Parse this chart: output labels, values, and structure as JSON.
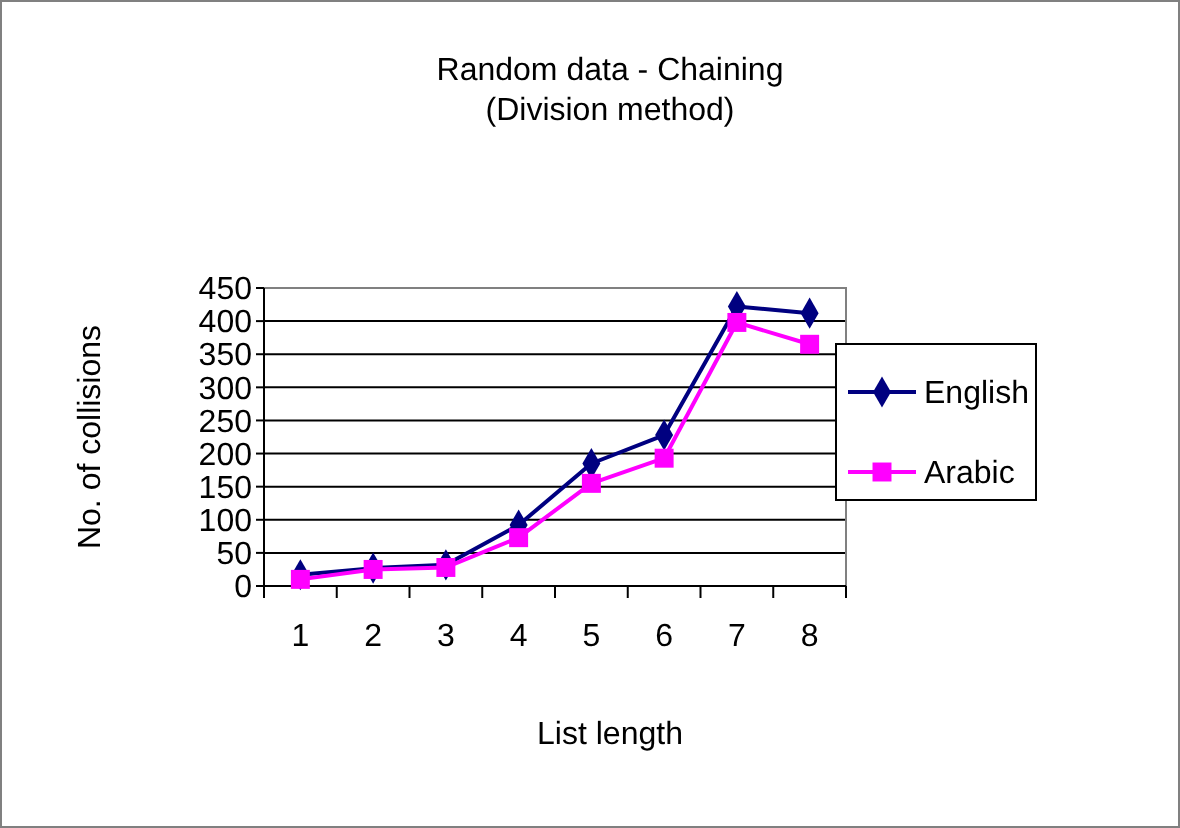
{
  "chart_data": {
    "type": "line",
    "title": "Random data -  Chaining",
    "subtitle": "(Division method)",
    "xlabel": "List length",
    "ylabel": "No. of collisions",
    "categories": [
      "1",
      "2",
      "3",
      "4",
      "5",
      "6",
      "7",
      "8"
    ],
    "series": [
      {
        "name": "English",
        "color": "#000080",
        "marker": "diamond",
        "values": [
          17,
          27,
          32,
          92,
          185,
          228,
          422,
          412
        ]
      },
      {
        "name": "Arabic",
        "color": "#ff00ff",
        "marker": "square",
        "values": [
          10,
          25,
          28,
          73,
          155,
          193,
          398,
          365
        ]
      }
    ],
    "ylim": [
      0,
      450
    ],
    "yticks": [
      0,
      50,
      100,
      150,
      200,
      250,
      300,
      350,
      400,
      450
    ],
    "grid": "y",
    "legend": "right"
  }
}
